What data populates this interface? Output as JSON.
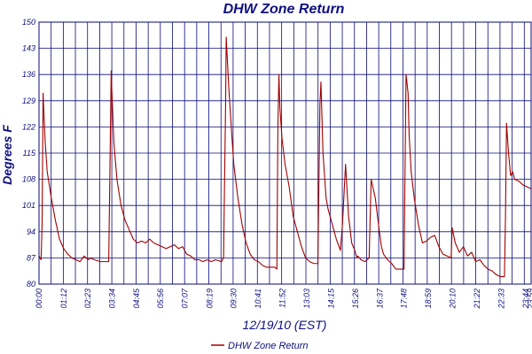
{
  "chart_data": {
    "type": "line",
    "title": "DHW Zone Return",
    "xlabel": "12/19/10 (EST)",
    "ylabel": "Degrees F",
    "ylim": [
      80,
      150
    ],
    "yticks": [
      "80",
      "87",
      "94",
      "101",
      "108",
      "115",
      "122",
      "129",
      "136",
      "143",
      "150"
    ],
    "xticks": [
      "00:00",
      "01:12",
      "02:23",
      "03:34",
      "04:45",
      "05:56",
      "07:07",
      "08:19",
      "09:30",
      "10:41",
      "11:52",
      "13:03",
      "14:15",
      "15:26",
      "16:37",
      "17:48",
      "18:59",
      "20:10",
      "21:22",
      "22:33",
      "23:44",
      "23:59"
    ],
    "grid": true,
    "legend": "bottom",
    "colors": {
      "series": "#a00000",
      "grid": "#0a0a7a",
      "text": "#101080"
    },
    "series": [
      {
        "name": "DHW Zone Return",
        "x_unit": "hours",
        "x": [
          0.0,
          0.1,
          0.15,
          0.2,
          0.22,
          0.3,
          0.4,
          0.6,
          0.8,
          1.0,
          1.2,
          1.4,
          1.6,
          1.8,
          2.0,
          2.2,
          2.4,
          2.5,
          2.7,
          3.0,
          3.4,
          3.52,
          3.55,
          3.65,
          3.8,
          4.0,
          4.2,
          4.4,
          4.6,
          4.8,
          5.0,
          5.2,
          5.4,
          5.6,
          5.8,
          6.0,
          6.2,
          6.4,
          6.6,
          6.8,
          7.0,
          7.2,
          7.4,
          7.6,
          7.8,
          8.0,
          8.2,
          8.4,
          8.6,
          8.9,
          9.0,
          9.1,
          9.13,
          9.25,
          9.4,
          9.5,
          9.7,
          9.9,
          10.1,
          10.3,
          10.5,
          10.7,
          10.9,
          11.1,
          11.3,
          11.5,
          11.6,
          11.65,
          11.7,
          11.75,
          11.85,
          12.0,
          12.2,
          12.4,
          12.6,
          12.8,
          13.0,
          13.2,
          13.4,
          13.6,
          13.7,
          13.75,
          13.85,
          14.0,
          14.1,
          14.3,
          14.5,
          14.7,
          14.8,
          14.95,
          15.1,
          15.25,
          15.4,
          15.5,
          15.55,
          15.7,
          15.9,
          16.1,
          16.2,
          16.4,
          16.6,
          16.7,
          16.8,
          17.0,
          17.2,
          17.4,
          17.6,
          17.8,
          17.9,
          18.0,
          18.05,
          18.15,
          18.3,
          18.5,
          18.7,
          18.9,
          19.1,
          19.3,
          19.5,
          19.7,
          19.9,
          20.1,
          20.15,
          20.3,
          20.5,
          20.7,
          20.9,
          21.1,
          21.3,
          21.5,
          21.7,
          21.9,
          22.1,
          22.3,
          22.5,
          22.7,
          22.75,
          22.8,
          22.9,
          23.0,
          23.1,
          23.2,
          23.4,
          23.6,
          23.8,
          23.98
        ],
        "y": [
          87.5,
          86.5,
          96,
          131,
          128,
          118,
          110,
          103,
          97,
          92,
          89.5,
          88,
          87,
          86.5,
          86,
          87.5,
          86.5,
          87,
          86.5,
          86,
          86,
          137,
          132,
          118,
          108,
          101,
          97,
          94.5,
          92,
          91,
          91.5,
          91,
          92,
          91,
          90.5,
          90,
          89.5,
          90,
          90.5,
          89.5,
          90,
          88,
          87.5,
          86.5,
          86.5,
          86,
          86.5,
          86,
          86.5,
          86,
          87,
          128,
          146,
          133,
          120,
          112,
          103,
          96,
          91,
          88,
          86.5,
          86,
          85,
          84.5,
          84.5,
          84.5,
          84,
          122,
          136,
          127,
          119,
          112,
          106,
          98,
          94,
          90,
          87,
          86,
          85.5,
          85.5,
          128,
          134,
          115,
          103,
          100,
          96,
          92,
          89,
          96,
          112,
          98,
          91,
          89,
          87,
          87.5,
          86.5,
          86,
          87,
          108,
          103,
          94,
          90,
          88,
          86.5,
          85.5,
          84,
          84,
          84,
          136,
          131,
          120,
          110,
          103,
          96,
          91,
          91.5,
          92.5,
          93,
          90,
          88,
          87.5,
          87,
          95,
          91,
          88.5,
          90,
          87.5,
          88.5,
          86,
          86.5,
          85,
          84,
          83.5,
          82.5,
          82,
          82,
          98,
          123,
          115,
          109,
          110,
          108,
          107.5,
          106.5,
          106,
          105.5
        ]
      }
    ]
  }
}
